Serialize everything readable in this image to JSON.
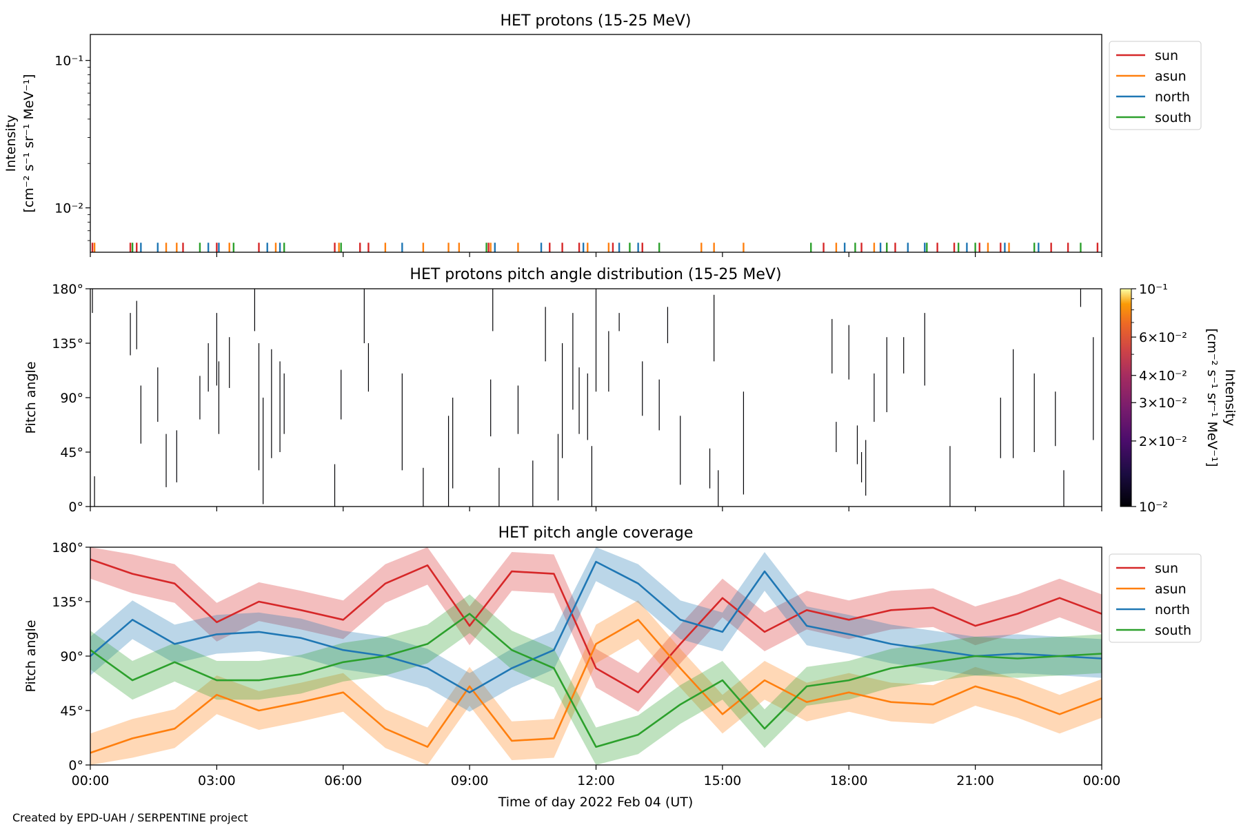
{
  "credit": "Created by EPD-UAH / SERPENTINE project",
  "xaxis": {
    "label": "Time of day 2022 Feb 04 (UT)",
    "ticks": [
      "00:00",
      "03:00",
      "06:00",
      "09:00",
      "12:00",
      "15:00",
      "18:00",
      "21:00",
      "00:00"
    ],
    "range_hours": [
      0,
      24
    ]
  },
  "colors": {
    "sun": "#d62728",
    "asun": "#ff7f0e",
    "north": "#1f77b4",
    "south": "#2ca02c"
  },
  "chart_data": [
    {
      "type": "line",
      "title": "HET protons (15-25 MeV)",
      "ylabel_line1": "Intensity",
      "ylabel_line2": "[cm⁻² s⁻¹ sr⁻¹ MeV⁻¹]",
      "yscale": "log",
      "ylim": [
        0.005,
        0.15
      ],
      "yticks": [
        "10⁻¹",
        "10⁻²"
      ],
      "legend": [
        "sun",
        "asun",
        "north",
        "south"
      ],
      "legend_position": "outside-right-top",
      "series": [
        {
          "name": "sun",
          "times_h": [
            0.05,
            0.95,
            1.1,
            2.2,
            3.0,
            4.0,
            5.8,
            6.4,
            6.6,
            9.45,
            10.9,
            11.2,
            11.6,
            12.4,
            13.1,
            17.4,
            18.3,
            18.9,
            19.1,
            20.1,
            20.5,
            21.1,
            21.6,
            22.8,
            23.2,
            23.9
          ],
          "value": 0.0058
        },
        {
          "name": "asun",
          "times_h": [
            0.1,
            1.8,
            2.05,
            3.3,
            4.4,
            5.9,
            7.0,
            7.9,
            8.5,
            8.75,
            9.5,
            10.15,
            11.8,
            12.3,
            14.5,
            14.8,
            15.5,
            17.7,
            18.6,
            21.3,
            21.8
          ],
          "value": 0.0058
        },
        {
          "name": "north",
          "times_h": [
            1.2,
            1.6,
            2.8,
            3.05,
            4.2,
            4.5,
            7.4,
            9.6,
            10.7,
            11.7,
            12.55,
            13.0,
            17.9,
            18.75,
            19.4,
            19.8,
            20.8,
            21.7,
            22.5
          ],
          "value": 0.0058
        },
        {
          "name": "south",
          "times_h": [
            1.0,
            2.6,
            3.4,
            4.6,
            5.95,
            9.4,
            12.8,
            13.5,
            17.1,
            18.15,
            18.9,
            19.85,
            20.6,
            21.0,
            22.4,
            23.5
          ],
          "value": 0.0058
        }
      ]
    },
    {
      "type": "heatmap",
      "title": "HET protons pitch angle distribution (15-25 MeV)",
      "ylabel": "Pitch angle",
      "ylim": [
        0,
        180
      ],
      "yticks": [
        "0°",
        "45°",
        "90°",
        "135°",
        "180°"
      ],
      "colorbar": {
        "label_line1": "Intensity",
        "label_line2": "[cm⁻² s⁻¹ sr⁻¹ MeV⁻¹]",
        "scale": "log",
        "range": [
          0.01,
          0.1
        ],
        "ticks": [
          "10⁻²",
          "2×10⁻²",
          "3×10⁻²",
          "4×10⁻²",
          "6×10⁻²",
          "10⁻¹"
        ],
        "colormap": "inferno"
      },
      "segments": [
        [
          0.05,
          160,
          180
        ],
        [
          0.1,
          0,
          25
        ],
        [
          0.95,
          125,
          160
        ],
        [
          1.1,
          130,
          170
        ],
        [
          1.2,
          52,
          100
        ],
        [
          1.6,
          70,
          115
        ],
        [
          1.8,
          16,
          60
        ],
        [
          2.05,
          20,
          63
        ],
        [
          2.6,
          72,
          108
        ],
        [
          2.8,
          95,
          135
        ],
        [
          3.0,
          100,
          160
        ],
        [
          3.05,
          60,
          120
        ],
        [
          3.3,
          98,
          140
        ],
        [
          3.9,
          145,
          180
        ],
        [
          4.0,
          30,
          135
        ],
        [
          4.1,
          2,
          90
        ],
        [
          4.3,
          40,
          130
        ],
        [
          4.5,
          45,
          120
        ],
        [
          4.6,
          60,
          110
        ],
        [
          5.8,
          0,
          35
        ],
        [
          5.95,
          72,
          113
        ],
        [
          6.5,
          135,
          180
        ],
        [
          6.6,
          95,
          135
        ],
        [
          7.4,
          30,
          110
        ],
        [
          7.9,
          0,
          32
        ],
        [
          8.5,
          0,
          75
        ],
        [
          8.6,
          15,
          90
        ],
        [
          9.5,
          58,
          105
        ],
        [
          9.55,
          145,
          180
        ],
        [
          9.7,
          0,
          32
        ],
        [
          10.15,
          60,
          100
        ],
        [
          10.5,
          0,
          38
        ],
        [
          10.8,
          120,
          165
        ],
        [
          11.1,
          5,
          60
        ],
        [
          11.2,
          40,
          135
        ],
        [
          11.45,
          80,
          160
        ],
        [
          11.6,
          60,
          115
        ],
        [
          11.8,
          55,
          110
        ],
        [
          11.9,
          0,
          50
        ],
        [
          12.0,
          95,
          185
        ],
        [
          12.3,
          95,
          145
        ],
        [
          12.55,
          145,
          160
        ],
        [
          13.1,
          75,
          120
        ],
        [
          13.5,
          63,
          105
        ],
        [
          13.7,
          135,
          165
        ],
        [
          14.0,
          18,
          75
        ],
        [
          14.7,
          15,
          48
        ],
        [
          14.8,
          120,
          175
        ],
        [
          14.9,
          0,
          30
        ],
        [
          15.5,
          10,
          95
        ],
        [
          17.6,
          110,
          155
        ],
        [
          17.7,
          45,
          70
        ],
        [
          18.0,
          105,
          150
        ],
        [
          18.2,
          35,
          67
        ],
        [
          18.3,
          20,
          45
        ],
        [
          18.4,
          9,
          55
        ],
        [
          18.6,
          70,
          110
        ],
        [
          18.9,
          78,
          140
        ],
        [
          19.3,
          110,
          140
        ],
        [
          19.8,
          100,
          160
        ],
        [
          20.4,
          0,
          50
        ],
        [
          21.6,
          40,
          90
        ],
        [
          21.9,
          40,
          130
        ],
        [
          22.4,
          45,
          110
        ],
        [
          22.9,
          50,
          95
        ],
        [
          23.1,
          0,
          30
        ],
        [
          23.5,
          165,
          180
        ],
        [
          23.8,
          55,
          140
        ]
      ]
    },
    {
      "type": "area",
      "title": "HET pitch angle coverage",
      "ylabel": "Pitch angle",
      "ylim": [
        0,
        180
      ],
      "yticks": [
        "0°",
        "45°",
        "90°",
        "135°",
        "180°"
      ],
      "legend": [
        "sun",
        "asun",
        "north",
        "south"
      ],
      "legend_position": "outside-right-top",
      "band_halfwidth_deg": 16,
      "series": [
        {
          "name": "sun",
          "times_h": [
            0,
            1,
            2,
            3,
            4,
            5,
            6,
            7,
            8,
            9,
            10,
            11,
            12,
            13,
            14,
            15,
            16,
            17,
            18,
            19,
            20,
            21,
            22,
            23,
            24
          ],
          "values": [
            170,
            158,
            150,
            118,
            135,
            128,
            120,
            150,
            165,
            115,
            160,
            158,
            80,
            60,
            100,
            138,
            110,
            128,
            120,
            128,
            130,
            115,
            125,
            138,
            125
          ]
        },
        {
          "name": "asun",
          "times_h": [
            0,
            1,
            2,
            3,
            4,
            5,
            6,
            7,
            8,
            9,
            10,
            11,
            12,
            13,
            14,
            15,
            16,
            17,
            18,
            19,
            20,
            21,
            22,
            23,
            24
          ],
          "values": [
            10,
            22,
            30,
            58,
            45,
            52,
            60,
            30,
            15,
            65,
            20,
            22,
            100,
            120,
            80,
            42,
            70,
            52,
            60,
            52,
            50,
            65,
            55,
            42,
            55
          ]
        },
        {
          "name": "north",
          "times_h": [
            0,
            1,
            2,
            3,
            4,
            5,
            6,
            7,
            8,
            9,
            10,
            11,
            12,
            13,
            14,
            15,
            16,
            17,
            18,
            19,
            20,
            21,
            22,
            23,
            24
          ],
          "values": [
            90,
            120,
            100,
            108,
            110,
            105,
            95,
            90,
            80,
            60,
            80,
            95,
            168,
            150,
            120,
            110,
            160,
            115,
            108,
            100,
            95,
            90,
            92,
            90,
            88
          ]
        },
        {
          "name": "south",
          "times_h": [
            0,
            1,
            2,
            3,
            4,
            5,
            6,
            7,
            8,
            9,
            10,
            11,
            12,
            13,
            14,
            15,
            16,
            17,
            18,
            19,
            20,
            21,
            22,
            23,
            24
          ],
          "values": [
            95,
            70,
            85,
            70,
            70,
            75,
            85,
            90,
            100,
            125,
            95,
            80,
            15,
            25,
            50,
            70,
            30,
            65,
            70,
            80,
            85,
            90,
            88,
            90,
            92
          ]
        }
      ]
    }
  ]
}
